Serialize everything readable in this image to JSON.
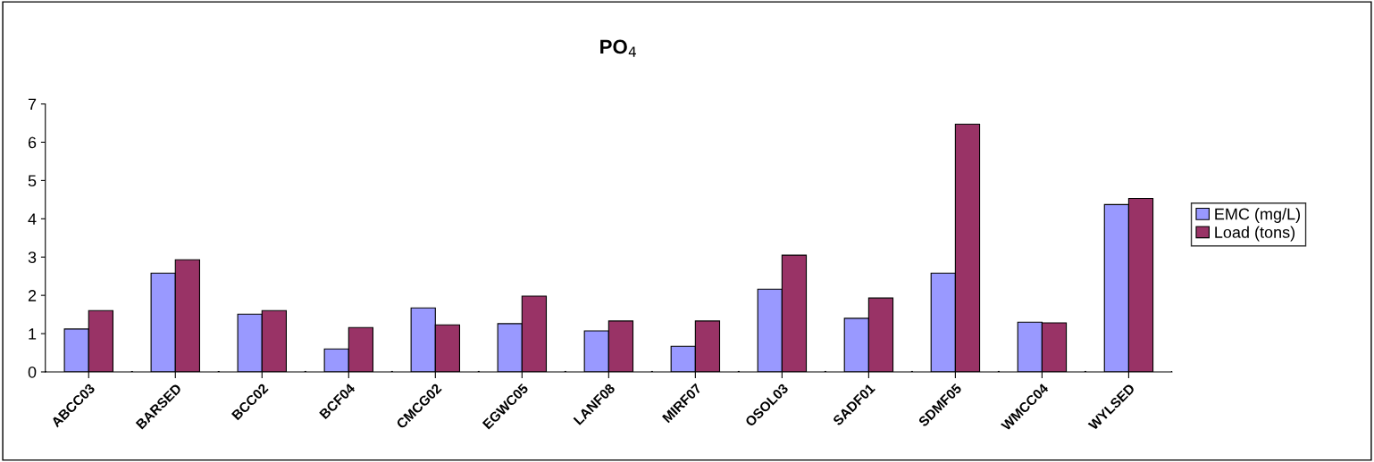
{
  "chart_data": {
    "type": "bar",
    "title": "PO$_{4}$",
    "categories": [
      "ABCC03",
      "BARSED",
      "BCC02",
      "BCF04",
      "CMCG02",
      "EGWC05",
      "LANF08",
      "MIRF07",
      "OSOL03",
      "SADF01",
      "SDMF05",
      "WMCC04",
      "WYLSED"
    ],
    "series": [
      {
        "name": "EMC (mg/L)",
        "color": "#9999ff",
        "values": [
          1.12,
          2.58,
          1.51,
          0.6,
          1.67,
          1.26,
          1.07,
          0.67,
          2.16,
          1.4,
          2.58,
          1.3,
          4.37
        ]
      },
      {
        "name": "Load (tons)",
        "color": "#993366",
        "values": [
          1.6,
          2.93,
          1.6,
          1.16,
          1.23,
          1.98,
          1.33,
          1.33,
          3.05,
          1.93,
          6.47,
          1.28,
          4.53
        ]
      }
    ],
    "ylim": [
      0,
      7
    ],
    "yticks": [
      0,
      1,
      2,
      3,
      4,
      5,
      6,
      7
    ],
    "grid": false,
    "legend": "right"
  }
}
